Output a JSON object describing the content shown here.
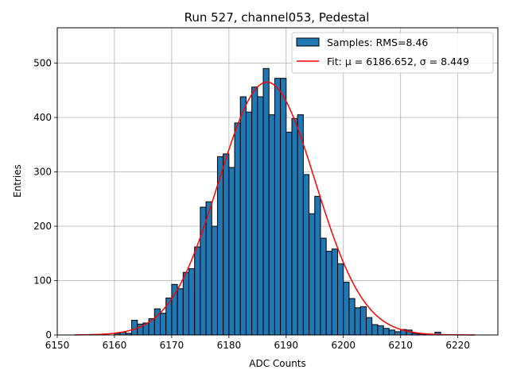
{
  "chart_data": {
    "type": "bar",
    "title": "Run 527, channel053, Pedestal",
    "xlabel": "ADC Counts",
    "ylabel": "Entries",
    "xlim": [
      6150,
      6227
    ],
    "ylim": [
      0,
      565
    ],
    "xticks": [
      6150,
      6160,
      6170,
      6180,
      6190,
      6200,
      6210,
      6220
    ],
    "yticks": [
      0,
      100,
      200,
      300,
      400,
      500
    ],
    "grid": true,
    "legend_position": "top-right",
    "bin_width": 1,
    "bar_color": "#1f77b4",
    "fit_color": "#ff0000",
    "histogram": {
      "name": "Samples: RMS=8.46",
      "bin_starts": [
        6160,
        6161,
        6162,
        6163,
        6164,
        6165,
        6166,
        6167,
        6168,
        6169,
        6170,
        6171,
        6172,
        6173,
        6174,
        6175,
        6176,
        6177,
        6178,
        6179,
        6180,
        6181,
        6182,
        6183,
        6184,
        6185,
        6186,
        6187,
        6188,
        6189,
        6190,
        6191,
        6192,
        6193,
        6194,
        6195,
        6196,
        6197,
        6198,
        6199,
        6200,
        6201,
        6202,
        6203,
        6204,
        6205,
        6206,
        6207,
        6208,
        6209,
        6210,
        6211,
        6212,
        6213,
        6214,
        6215,
        6216
      ],
      "counts": [
        3,
        5,
        3,
        27,
        20,
        22,
        30,
        48,
        40,
        68,
        93,
        85,
        115,
        122,
        162,
        235,
        245,
        200,
        328,
        333,
        308,
        390,
        438,
        410,
        456,
        438,
        490,
        405,
        472,
        472,
        373,
        398,
        405,
        295,
        223,
        255,
        178,
        154,
        158,
        131,
        97,
        67,
        50,
        52,
        32,
        19,
        17,
        12,
        9,
        6,
        10,
        9,
        3,
        2,
        1,
        1,
        5
      ]
    },
    "fit": {
      "name": "Fit: μ = 6186.652, σ = 8.449",
      "mu": 6186.652,
      "sigma": 8.449,
      "amplitude": 465,
      "x_range": [
        6153,
        6223
      ]
    }
  }
}
